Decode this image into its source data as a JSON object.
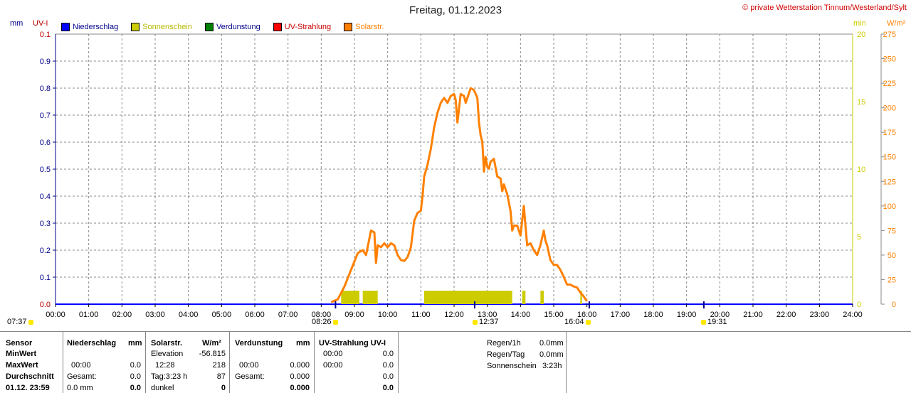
{
  "title": "Freitag, 01.12.2023",
  "copyright": "© private Wetterstation Tinnum/Westerland/Sylt",
  "colors": {
    "niederschlag": "#0000ff",
    "sonnenschein": "#cccc00",
    "verdunstung": "#008000",
    "uv": "#ff0000",
    "solar": "#ff8000",
    "left_axis": "#00008b",
    "uv_axis": "#c00000",
    "right_axis": "#cccc00"
  },
  "legend": [
    {
      "label": "Niederschlag",
      "color": "#0000ff",
      "text_color": "#00008b"
    },
    {
      "label": "Sonnenschein",
      "color": "#cccc00",
      "text_color": "#b8b800"
    },
    {
      "label": "Verdunstung",
      "color": "#008000",
      "text_color": "#00008b"
    },
    {
      "label": "UV-Strahlung",
      "color": "#ff0000",
      "text_color": "#cc0000"
    },
    {
      "label": "Solarstr.",
      "color": "#ff8000",
      "text_color": "#ff8000"
    }
  ],
  "chart_data": {
    "type": "line",
    "axis_units": {
      "left": "mm",
      "uv": "UV-I",
      "min": "min",
      "solar": "W/m²"
    },
    "x_ticks": [
      "00:00",
      "01:00",
      "02:00",
      "03:00",
      "04:00",
      "05:00",
      "06:00",
      "07:00",
      "08:00",
      "09:00",
      "10:00",
      "11:00",
      "12:00",
      "13:00",
      "14:00",
      "15:00",
      "16:00",
      "17:00",
      "18:00",
      "19:00",
      "20:00",
      "21:00",
      "22:00",
      "23:00",
      "24:00"
    ],
    "left_ticks": [
      "0.0",
      "0.1",
      "0.2",
      "0.3",
      "0.4",
      "0.5",
      "0.6",
      "0.7",
      "0.8",
      "0.9"
    ],
    "uv_ticks": [
      "0.0",
      "0.1"
    ],
    "min_ticks": [
      "0",
      "5",
      "10",
      "15",
      "20"
    ],
    "solar_ticks": [
      "0",
      "25",
      "50",
      "75",
      "100",
      "125",
      "150",
      "175",
      "200",
      "225",
      "250",
      "275"
    ],
    "xlim": [
      0,
      24
    ],
    "left_ylim": [
      0,
      1.0
    ],
    "min_ylim": [
      0,
      20
    ],
    "solar_ylim": [
      0,
      275
    ],
    "series": [
      {
        "name": "Solarstr.",
        "axis": "solar",
        "x": [
          8.3,
          8.5,
          8.7,
          8.9,
          9.1,
          9.25,
          9.35,
          9.5,
          9.6,
          9.65,
          9.7,
          9.8,
          9.9,
          10.0,
          10.1,
          10.2,
          10.3,
          10.4,
          10.5,
          10.6,
          10.7,
          10.8,
          10.9,
          11.0,
          11.05,
          11.1,
          11.2,
          11.25,
          11.3,
          11.4,
          11.5,
          11.6,
          11.7,
          11.8,
          11.9,
          12.0,
          12.05,
          12.1,
          12.2,
          12.3,
          12.35,
          12.4,
          12.5,
          12.6,
          12.7,
          12.75,
          12.8,
          12.85,
          12.9,
          12.95,
          13.0,
          13.05,
          13.1,
          13.2,
          13.3,
          13.4,
          13.45,
          13.5,
          13.55,
          13.6,
          13.7,
          13.75,
          13.8,
          13.9,
          14.0,
          14.05,
          14.1,
          14.15,
          14.2,
          14.3,
          14.4,
          14.5,
          14.6,
          14.7,
          14.75,
          14.8,
          14.9,
          15.0,
          15.1,
          15.2,
          15.3,
          15.4,
          15.5,
          15.6,
          15.7,
          15.8,
          15.9,
          16.0
        ],
        "y": [
          2,
          5,
          18,
          35,
          52,
          55,
          50,
          75,
          73,
          42,
          60,
          58,
          62,
          58,
          62,
          60,
          50,
          45,
          44,
          48,
          58,
          85,
          93,
          95,
          110,
          130,
          142,
          150,
          158,
          180,
          195,
          205,
          210,
          205,
          212,
          214,
          208,
          185,
          214,
          212,
          205,
          210,
          220,
          218,
          210,
          185,
          172,
          165,
          135,
          150,
          140,
          138,
          145,
          148,
          130,
          128,
          115,
          122,
          117,
          112,
          95,
          75,
          80,
          80,
          70,
          85,
          100,
          80,
          60,
          62,
          55,
          50,
          60,
          75,
          65,
          60,
          45,
          40,
          40,
          35,
          28,
          20,
          20,
          18,
          17,
          12,
          8,
          3
        ]
      }
    ],
    "sunshine_bars": [
      [
        8.6,
        9.15
      ],
      [
        9.25,
        9.7
      ],
      [
        11.1,
        13.75
      ],
      [
        14.05,
        14.15
      ],
      [
        14.6,
        14.7
      ],
      [
        15.8,
        15.85
      ]
    ],
    "sun_markers": [
      {
        "label": "07:37",
        "text": "07:37"
      },
      {
        "label": "08:26",
        "text": "08:26"
      },
      {
        "label": "12:37",
        "text": "12:37"
      },
      {
        "label": "16:04",
        "text": "16:04"
      },
      {
        "label": "19:31",
        "text": "19:31"
      }
    ],
    "grid": true
  },
  "table": {
    "sensor_col": {
      "header": "Sensor",
      "rows": [
        "MinWert",
        "MaxWert",
        "Durchschnitt",
        "01.12. 23:59"
      ]
    },
    "niederschlag": {
      "header": "Niederschlag",
      "unit": "mm",
      "max_time": "00:00",
      "max_val": "0.0",
      "gesamt_label": "Gesamt:",
      "gesamt_val": "0.0",
      "last_val": "0.0 mm",
      "last_bold": "0.0"
    },
    "solar": {
      "header": "Solarstr.",
      "unit": "W/m²",
      "min_label": "Elevation",
      "min_val": "-56.815",
      "max_time": "12:28",
      "max_val": "218",
      "avg_label": "Tag:3:23 h",
      "avg_val": "87",
      "last_label": "dunkel",
      "last_val": "0"
    },
    "verdunstung": {
      "header": "Verdunstung",
      "unit": "mm",
      "max_time": "00:00",
      "max_val": "0.000",
      "gesamt_label": "Gesamt:",
      "gesamt_val": "0.000",
      "last_val": "0.000"
    },
    "uv": {
      "header": "UV-Strahlung UV-I",
      "min_time": "00:00",
      "min_val": "0.0",
      "max_time": "00:00",
      "max_val": "0.0",
      "avg_val": "0.0",
      "last_val": "0.0"
    },
    "summary": [
      {
        "label": "Regen/1h",
        "value": "0.0mm"
      },
      {
        "label": "Regen/Tag",
        "value": "0.0mm"
      },
      {
        "label": "Sonnenschein",
        "value": "3:23h"
      }
    ]
  }
}
